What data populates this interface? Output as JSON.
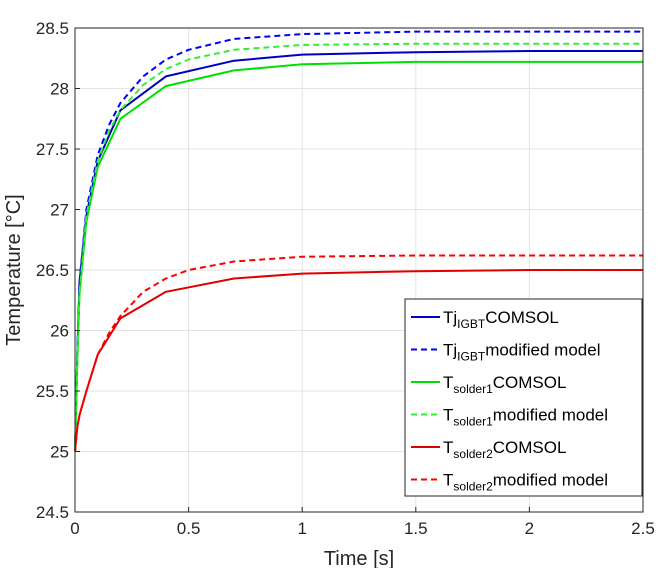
{
  "chart_data": {
    "type": "line",
    "xlabel": "Time [s]",
    "ylabel": "Temperature [°C]",
    "xlim": [
      0,
      2.5
    ],
    "ylim": [
      24.5,
      28.5
    ],
    "xticks": [
      0,
      0.5,
      1,
      1.5,
      2,
      2.5
    ],
    "xtick_labels": [
      "0",
      "0.5",
      "1",
      "1.5",
      "2",
      "2.5"
    ],
    "yticks": [
      24.5,
      25,
      25.5,
      26,
      26.5,
      27,
      27.5,
      28,
      28.5
    ],
    "ytick_labels": [
      "24.5",
      "25",
      "25.5",
      "26",
      "26.5",
      "27",
      "27.5",
      "28",
      "28.5"
    ],
    "grid": true,
    "legend_position": "bottom-right",
    "series": [
      {
        "name": "Tj IGBT COMSOL",
        "label_main": "Tj",
        "label_sub": "IGBT",
        "label_tail": "COMSOL",
        "color": "#0000c0",
        "dash": "solid",
        "x": [
          0,
          0.01,
          0.02,
          0.05,
          0.1,
          0.2,
          0.4,
          0.7,
          1.0,
          1.5,
          2.0,
          2.5
        ],
        "y": [
          25.0,
          25.8,
          26.4,
          26.95,
          27.4,
          27.82,
          28.1,
          28.23,
          28.28,
          28.3,
          28.31,
          28.31
        ]
      },
      {
        "name": "Tj IGBT modified model",
        "label_main": "Tj",
        "label_sub": "IGBT",
        "label_tail": "modified model",
        "color": "#0000ff",
        "dash": "dashed",
        "x": [
          0,
          0.01,
          0.02,
          0.05,
          0.1,
          0.15,
          0.2,
          0.3,
          0.4,
          0.5,
          0.7,
          1.0,
          1.5,
          2.0,
          2.5
        ],
        "y": [
          25.0,
          25.8,
          26.4,
          27.0,
          27.45,
          27.7,
          27.88,
          28.1,
          28.24,
          28.32,
          28.41,
          28.45,
          28.47,
          28.47,
          28.47
        ]
      },
      {
        "name": "T solder1 COMSOL",
        "label_main": "T",
        "label_sub": "solder1",
        "label_tail": "COMSOL",
        "color": "#00e000",
        "dash": "solid",
        "x": [
          0,
          0.01,
          0.02,
          0.05,
          0.1,
          0.2,
          0.4,
          0.7,
          1.0,
          1.5,
          2.0,
          2.5
        ],
        "y": [
          25.0,
          25.75,
          26.3,
          26.9,
          27.35,
          27.75,
          28.02,
          28.15,
          28.2,
          28.22,
          28.22,
          28.22
        ]
      },
      {
        "name": "T solder1 modified model",
        "label_main": "T",
        "label_sub": "solder1",
        "label_tail": "modified model",
        "color": "#33ee33",
        "dash": "dashed",
        "x": [
          0,
          0.01,
          0.02,
          0.05,
          0.1,
          0.15,
          0.2,
          0.3,
          0.4,
          0.5,
          0.7,
          1.0,
          1.5,
          2.0,
          2.5
        ],
        "y": [
          25.0,
          25.75,
          26.3,
          26.95,
          27.4,
          27.65,
          27.82,
          28.03,
          28.16,
          28.24,
          28.32,
          28.36,
          28.37,
          28.37,
          28.37
        ]
      },
      {
        "name": "T solder2 COMSOL",
        "label_main": "T",
        "label_sub": "solder2",
        "label_tail": "COMSOL",
        "color": "#e00000",
        "dash": "solid",
        "x": [
          0,
          0.01,
          0.02,
          0.05,
          0.1,
          0.2,
          0.4,
          0.7,
          1.0,
          1.5,
          2.0,
          2.5
        ],
        "y": [
          25.0,
          25.2,
          25.3,
          25.5,
          25.8,
          26.1,
          26.32,
          26.43,
          26.47,
          26.49,
          26.5,
          26.5
        ]
      },
      {
        "name": "T solder2 modified model",
        "label_main": "T",
        "label_sub": "solder2",
        "label_tail": "modified model",
        "color": "#ff0000",
        "dash": "dashed",
        "x": [
          0,
          0.01,
          0.02,
          0.05,
          0.1,
          0.15,
          0.2,
          0.3,
          0.4,
          0.5,
          0.7,
          1.0,
          1.5,
          2.0,
          2.5
        ],
        "y": [
          25.0,
          25.2,
          25.3,
          25.5,
          25.8,
          25.98,
          26.12,
          26.32,
          26.43,
          26.5,
          26.57,
          26.61,
          26.62,
          26.62,
          26.62
        ]
      }
    ]
  }
}
